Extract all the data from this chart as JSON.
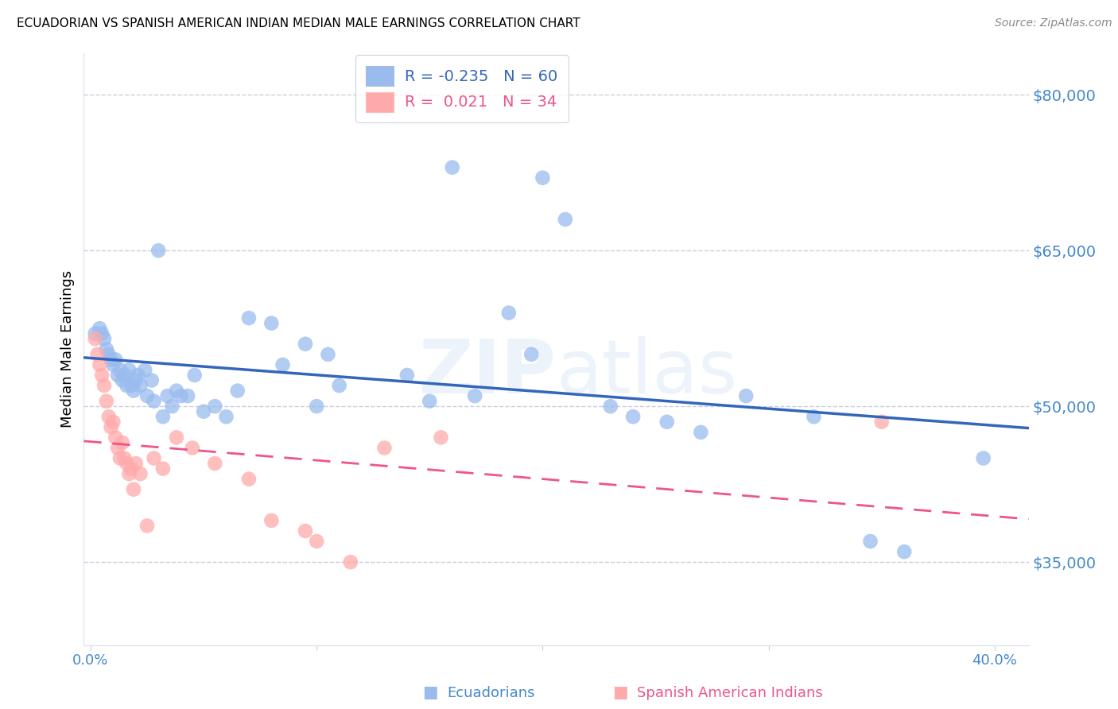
{
  "title": "ECUADORIAN VS SPANISH AMERICAN INDIAN MEDIAN MALE EARNINGS CORRELATION CHART",
  "source": "Source: ZipAtlas.com",
  "ylabel": "Median Male Earnings",
  "watermark": "ZIPatlas",
  "ytick_labels": [
    "$80,000",
    "$65,000",
    "$50,000",
    "$35,000"
  ],
  "ytick_values": [
    80000,
    65000,
    50000,
    35000
  ],
  "ymin": 27000,
  "ymax": 84000,
  "xmin": -0.003,
  "xmax": 0.415,
  "blue_R": -0.235,
  "blue_N": 60,
  "pink_R": 0.021,
  "pink_N": 34,
  "blue_scatter_color": "#99BBEE",
  "pink_scatter_color": "#FFAAAA",
  "blue_line_color": "#3366BB",
  "pink_line_color": "#EE5588",
  "axis_label_color": "#4488CC",
  "grid_color": "#CCCCDD",
  "background_color": "#FFFFFF",
  "legend_label1_color": "#3366BB",
  "legend_label2_color": "#EE5588",
  "bottom_legend_label1": "Ecuadorians",
  "bottom_legend_label2": "Spanish American Indians",
  "blue_x": [
    0.002,
    0.004,
    0.005,
    0.006,
    0.007,
    0.008,
    0.009,
    0.01,
    0.011,
    0.012,
    0.013,
    0.014,
    0.015,
    0.016,
    0.017,
    0.018,
    0.019,
    0.02,
    0.021,
    0.022,
    0.024,
    0.025,
    0.027,
    0.028,
    0.03,
    0.032,
    0.034,
    0.036,
    0.038,
    0.04,
    0.043,
    0.046,
    0.05,
    0.055,
    0.06,
    0.065,
    0.07,
    0.08,
    0.085,
    0.095,
    0.1,
    0.105,
    0.11,
    0.14,
    0.15,
    0.16,
    0.17,
    0.185,
    0.195,
    0.2,
    0.21,
    0.23,
    0.24,
    0.255,
    0.27,
    0.29,
    0.32,
    0.345,
    0.36,
    0.395
  ],
  "blue_y": [
    57000,
    57500,
    57000,
    56500,
    55500,
    55000,
    54500,
    54000,
    54500,
    53000,
    53500,
    52500,
    53000,
    52000,
    53500,
    52000,
    51500,
    52500,
    53000,
    52000,
    53500,
    51000,
    52500,
    50500,
    65000,
    49000,
    51000,
    50000,
    51500,
    51000,
    51000,
    53000,
    49500,
    50000,
    49000,
    51500,
    58500,
    58000,
    54000,
    56000,
    50000,
    55000,
    52000,
    53000,
    50500,
    73000,
    51000,
    59000,
    55000,
    72000,
    68000,
    50000,
    49000,
    48500,
    47500,
    51000,
    49000,
    37000,
    36000,
    45000
  ],
  "pink_x": [
    0.002,
    0.003,
    0.004,
    0.005,
    0.006,
    0.007,
    0.008,
    0.009,
    0.01,
    0.011,
    0.012,
    0.013,
    0.014,
    0.015,
    0.016,
    0.017,
    0.018,
    0.019,
    0.02,
    0.022,
    0.025,
    0.028,
    0.032,
    0.038,
    0.045,
    0.055,
    0.07,
    0.08,
    0.095,
    0.1,
    0.115,
    0.13,
    0.155,
    0.35
  ],
  "pink_y": [
    56500,
    55000,
    54000,
    53000,
    52000,
    50500,
    49000,
    48000,
    48500,
    47000,
    46000,
    45000,
    46500,
    45000,
    44500,
    43500,
    44000,
    42000,
    44500,
    43500,
    38500,
    45000,
    44000,
    47000,
    46000,
    44500,
    43000,
    39000,
    38000,
    37000,
    35000,
    46000,
    47000,
    48500
  ]
}
